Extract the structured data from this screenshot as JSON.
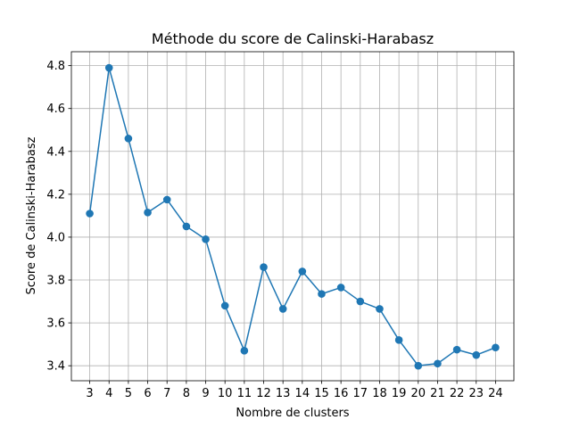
{
  "chart_data": {
    "type": "line",
    "title": "Méthode du score de Calinski-Harabasz",
    "xlabel": "Nombre de clusters",
    "ylabel": "Score de Calinski-Harabasz",
    "x": [
      3,
      4,
      5,
      6,
      7,
      8,
      9,
      10,
      11,
      12,
      13,
      14,
      15,
      16,
      17,
      18,
      19,
      20,
      21,
      22,
      23,
      24
    ],
    "series": [
      {
        "values": [
          4.11,
          4.79,
          4.46,
          4.115,
          4.175,
          4.05,
          3.99,
          3.68,
          3.47,
          3.86,
          3.665,
          3.84,
          3.735,
          3.765,
          3.7,
          3.665,
          3.52,
          3.4,
          3.41,
          3.475,
          3.45,
          3.485
        ],
        "color": "#1f77b4"
      }
    ],
    "x_ticks": [
      "3",
      "4",
      "5",
      "6",
      "7",
      "8",
      "9",
      "10",
      "11",
      "12",
      "13",
      "14",
      "15",
      "16",
      "17",
      "18",
      "19",
      "20",
      "21",
      "22",
      "23",
      "24"
    ],
    "y_ticks": [
      "3.4",
      "3.6",
      "3.8",
      "4.0",
      "4.2",
      "4.4",
      "4.6",
      "4.8"
    ],
    "xlim": [
      2.05,
      24.95
    ],
    "ylim": [
      3.33,
      4.865
    ],
    "grid": true,
    "marker": "circle"
  }
}
